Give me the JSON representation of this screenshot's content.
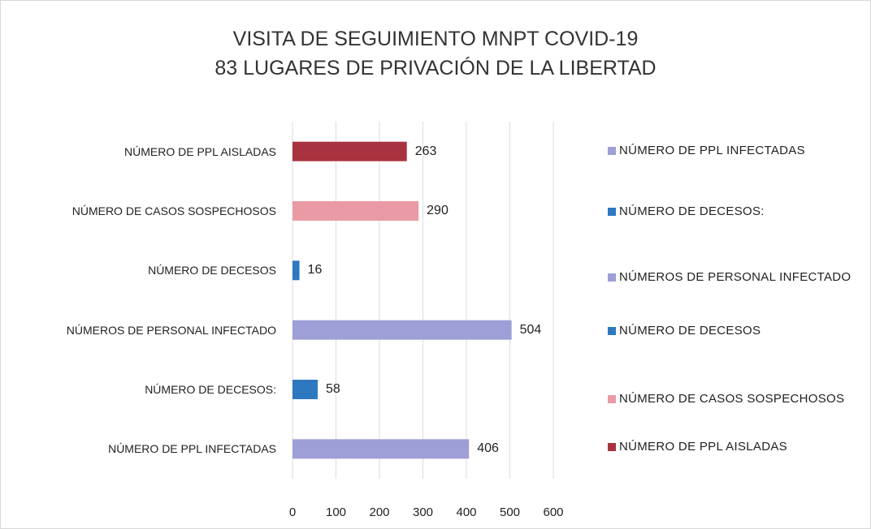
{
  "chart_data": {
    "type": "bar",
    "orientation": "horizontal",
    "title": "VISITA DE SEGUIMIENTO MNPT  COVID-19",
    "subtitle": "83 LUGARES DE PRIVACIÓN DE LA LIBERTAD",
    "categories": [
      "NÚMERO DE PPL INFECTADAS",
      "NÚMERO DE DECESOS:",
      "NÚMEROS DE PERSONAL INFECTADO",
      "NÚMERO DE DECESOS",
      "NÚMERO DE CASOS SOSPECHOSOS",
      "NÚMERO DE PPL AISLADAS"
    ],
    "values": [
      406,
      58,
      504,
      16,
      290,
      263
    ],
    "colors": [
      "#9d9fd6",
      "#2e78c0",
      "#9d9fd6",
      "#2e78c0",
      "#e99aa4",
      "#a8323f"
    ],
    "xlim": [
      0,
      600
    ],
    "xticks": [
      0,
      100,
      200,
      300,
      400,
      500,
      600
    ],
    "grid": true,
    "legend": "right"
  }
}
